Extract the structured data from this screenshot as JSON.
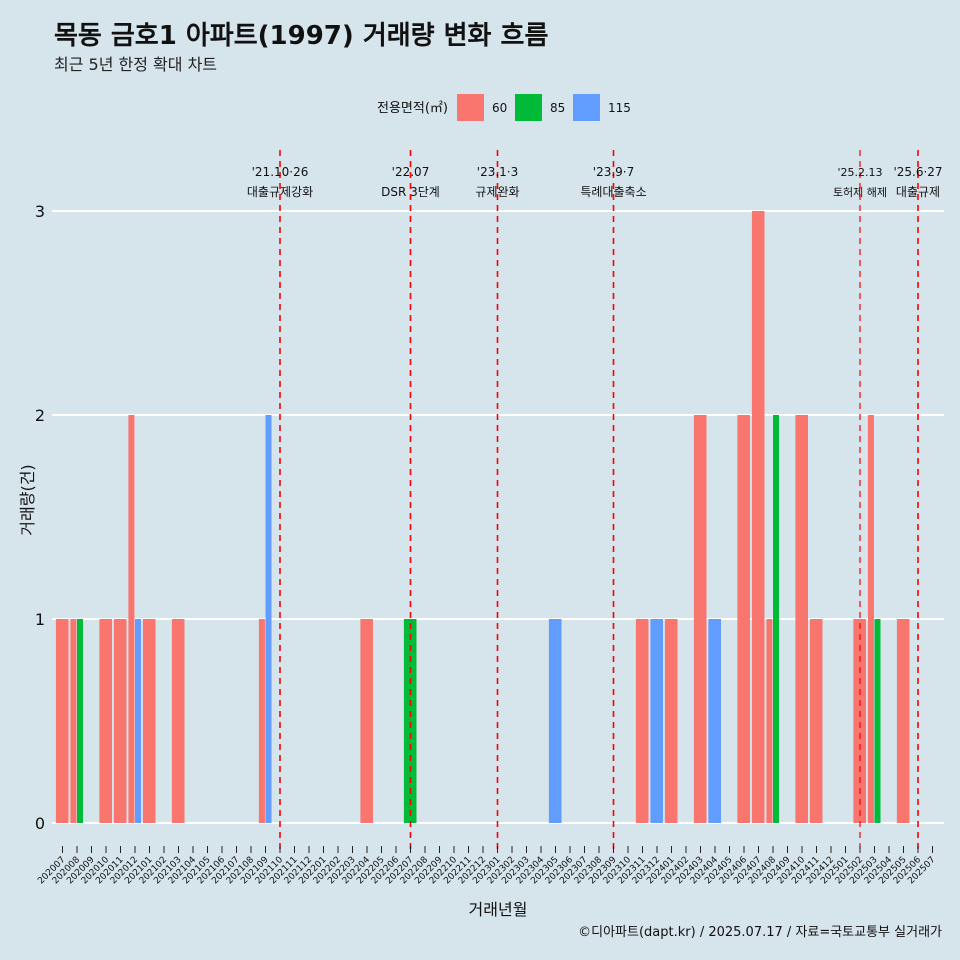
{
  "title": "목동 금호1 아파트(1997) 거래량 변화 흐름",
  "subtitle": "최근 5년 한정 확대 차트",
  "caption": "©디아파트(dapt.kr) / 2025.07.17 / 자료=국토교통부 실거래가",
  "legend": {
    "title": "전용면적(㎡)",
    "items": [
      {
        "label": "60",
        "color": "#f8766d"
      },
      {
        "label": "85",
        "color": "#00ba38"
      },
      {
        "label": "115",
        "color": "#619cff"
      }
    ]
  },
  "chart_data": {
    "type": "bar",
    "xlabel": "거래년월",
    "ylabel": "거래량(건)",
    "ylim": [
      0,
      3
    ],
    "yticks": [
      "0",
      "1",
      "2",
      "3"
    ],
    "grid": "horizontal",
    "legend_position": "top",
    "categories": [
      "202007",
      "202008",
      "202009",
      "202010",
      "202011",
      "202012",
      "202101",
      "202102",
      "202103",
      "202104",
      "202105",
      "202106",
      "202107",
      "202108",
      "202109",
      "202110",
      "202111",
      "202112",
      "202201",
      "202202",
      "202203",
      "202204",
      "202205",
      "202206",
      "202207",
      "202208",
      "202209",
      "202210",
      "202211",
      "202212",
      "202301",
      "202302",
      "202303",
      "202304",
      "202305",
      "202306",
      "202307",
      "202308",
      "202309",
      "202310",
      "202311",
      "202312",
      "202401",
      "202402",
      "202403",
      "202404",
      "202405",
      "202406",
      "202407",
      "202408",
      "202409",
      "202410",
      "202411",
      "202412",
      "202501",
      "202502",
      "202503",
      "202504",
      "202505",
      "202506",
      "202507"
    ],
    "bars": [
      {
        "month": "202007",
        "series": "60",
        "value": 1
      },
      {
        "month": "202008",
        "series": "60",
        "value": 1
      },
      {
        "month": "202008",
        "series": "85",
        "value": 1
      },
      {
        "month": "202010",
        "series": "60",
        "value": 1
      },
      {
        "month": "202011",
        "series": "60",
        "value": 1
      },
      {
        "month": "202012",
        "series": "60",
        "value": 2
      },
      {
        "month": "202012",
        "series": "115",
        "value": 1
      },
      {
        "month": "202101",
        "series": "60",
        "value": 1
      },
      {
        "month": "202103",
        "series": "60",
        "value": 1
      },
      {
        "month": "202109",
        "series": "60",
        "value": 1
      },
      {
        "month": "202109",
        "series": "115",
        "value": 2
      },
      {
        "month": "202204",
        "series": "60",
        "value": 1
      },
      {
        "month": "202207",
        "series": "85",
        "value": 1
      },
      {
        "month": "202305",
        "series": "115",
        "value": 1
      },
      {
        "month": "202311",
        "series": "60",
        "value": 1
      },
      {
        "month": "202312",
        "series": "115",
        "value": 1
      },
      {
        "month": "202401",
        "series": "60",
        "value": 1
      },
      {
        "month": "202403",
        "series": "60",
        "value": 2
      },
      {
        "month": "202404",
        "series": "115",
        "value": 1
      },
      {
        "month": "202406",
        "series": "60",
        "value": 2
      },
      {
        "month": "202407",
        "series": "60",
        "value": 3
      },
      {
        "month": "202408",
        "series": "60",
        "value": 1
      },
      {
        "month": "202408",
        "series": "85",
        "value": 2
      },
      {
        "month": "202410",
        "series": "60",
        "value": 2
      },
      {
        "month": "202411",
        "series": "60",
        "value": 1
      },
      {
        "month": "202502",
        "series": "60",
        "value": 1
      },
      {
        "month": "202503",
        "series": "60",
        "value": 2
      },
      {
        "month": "202503",
        "series": "85",
        "value": 1
      },
      {
        "month": "202505",
        "series": "60",
        "value": 1
      }
    ],
    "events": [
      {
        "month": "202110",
        "date": "'21.10·26",
        "label": "대출규제강화"
      },
      {
        "month": "202207",
        "date": "'22.07",
        "label": "DSR 3단계"
      },
      {
        "month": "202301",
        "date": "'23.1·3",
        "label": "규제완화"
      },
      {
        "month": "202309",
        "date": "'23.9·7",
        "label": "특례대출축소"
      },
      {
        "month": "202502",
        "date": "'25.2.13",
        "label": "토허제 해제",
        "small": true
      },
      {
        "month": "202506",
        "date": "'25.6·27",
        "label": "대출규제"
      }
    ]
  }
}
